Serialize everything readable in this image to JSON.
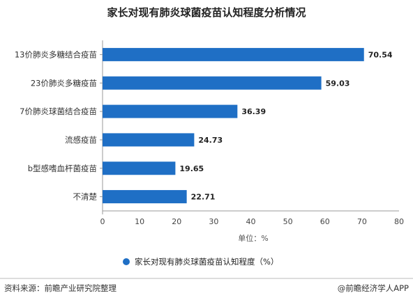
{
  "chart_data": {
    "type": "bar",
    "orientation": "horizontal",
    "title": "家长对现有肺炎球菌疫苗认知程度分析情况",
    "categories": [
      "13价肺炎多糖结合疫苗",
      "23价肺炎多糖疫苗",
      "7价肺炎球菌结合疫苗",
      "流感疫苗",
      "b型感嗜血杆菌疫苗",
      "不清楚"
    ],
    "series": [
      {
        "name": "家长对现有肺炎球菌疫苗认知程度（%）",
        "values": [
          70.54,
          59.03,
          36.39,
          24.73,
          19.65,
          22.71
        ],
        "labels": [
          "70.54",
          "59.03",
          "36.39",
          "24.73",
          "19.65",
          "22.71"
        ]
      }
    ],
    "xlim": [
      0,
      80
    ],
    "xticks": [
      0,
      10,
      20,
      30,
      40,
      50,
      60,
      70,
      80
    ],
    "xlabel": "单位：%",
    "grid": false,
    "legend_position": "bottom-center",
    "colors": {
      "bar": "#1f6fc5",
      "axis": "#999999"
    }
  },
  "footer": {
    "source": "资料来源：前瞻产业研究院整理",
    "brand": "@前瞻经济学人APP"
  }
}
